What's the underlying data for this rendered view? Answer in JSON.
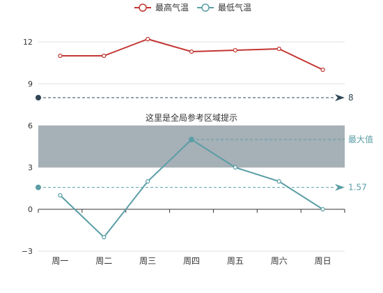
{
  "chart_data": {
    "type": "line",
    "categories": [
      "周一",
      "周二",
      "周三",
      "周四",
      "周五",
      "周六",
      "周日"
    ],
    "ylim": [
      -3,
      12
    ],
    "y_ticks": [
      -3,
      0,
      3,
      6,
      9,
      12
    ],
    "grid": true,
    "legend_position": "top-center",
    "series": [
      {
        "name": "最高气温",
        "color": "#c23531",
        "values": [
          11,
          11,
          12.2,
          11.3,
          11.4,
          11.5,
          10
        ]
      },
      {
        "name": "最低气温",
        "color": "#5b9ea6",
        "values": [
          1,
          -2,
          2,
          5,
          3,
          2,
          0
        ]
      }
    ],
    "annotations": {
      "mark_area": {
        "label": "这里是全局参考区域提示",
        "y_from": 3,
        "y_to": 6,
        "color": "#a6b0b7"
      },
      "mark_lines": [
        {
          "value": 8,
          "label": "8",
          "color": "#2f4554"
        },
        {
          "value": 1.57,
          "label": "1.57",
          "color": "#5b9ea6"
        },
        {
          "value": 5,
          "label": "最大值",
          "color": "#5b9ea6"
        }
      ],
      "max_point": {
        "category": "周四",
        "value": 5
      }
    }
  }
}
